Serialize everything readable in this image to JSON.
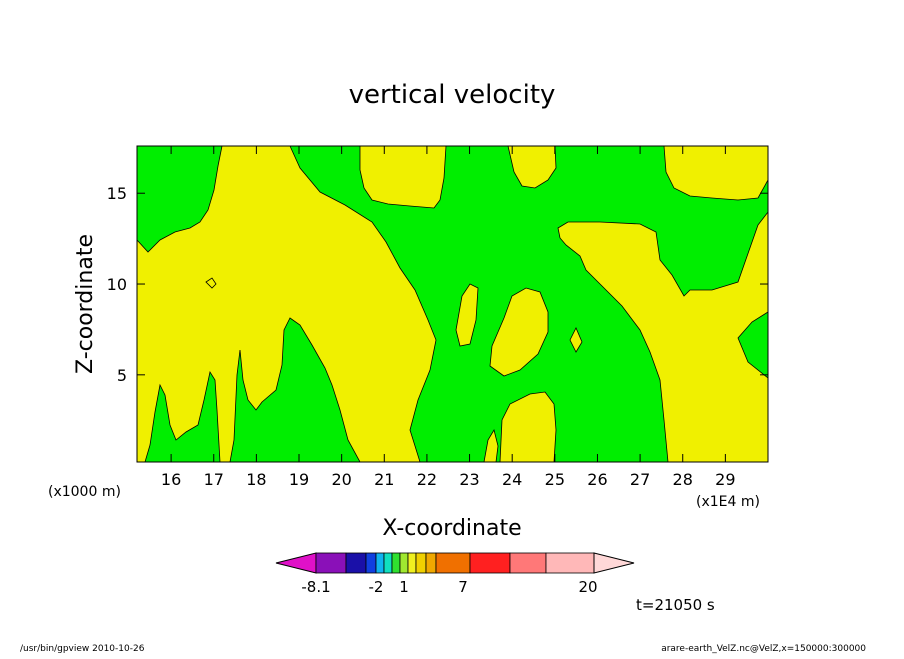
{
  "chart_data": {
    "type": "heatmap",
    "title": "vertical velocity",
    "xlabel": "X-coordinate",
    "ylabel": "Z-coordinate",
    "x_unit": "(x1E4 m)",
    "y_unit": "(x1000 m)",
    "x_ticks": [
      "16",
      "17",
      "18",
      "19",
      "20",
      "21",
      "22",
      "23",
      "24",
      "25",
      "26",
      "27",
      "28",
      "29"
    ],
    "y_ticks": [
      "5",
      "10",
      "15"
    ],
    "xlim": [
      15.2,
      30
    ],
    "ylim": [
      0.2,
      17.6
    ],
    "grid": false,
    "time_label": "t=21050 s",
    "colorbar": {
      "labels": [
        "-8.1",
        "-2",
        "1",
        "7",
        "20"
      ],
      "colors": [
        "#e011c8",
        "#8a10b8",
        "#1a10a8",
        "#1040e0",
        "#10b4f0",
        "#10e0c0",
        "#30e030",
        "#a0e830",
        "#f0f020",
        "#f0d000",
        "#f0a800",
        "#f07000",
        "#ff2020",
        "#ff7878",
        "#ffb8b8",
        "#ffd8d8"
      ],
      "regions_visible_colors": [
        "#00ee00",
        "#f0f000"
      ]
    }
  },
  "footer": {
    "left": "/usr/bin/gpview   2010-10-26",
    "right": "arare-earth_VelZ.nc@VelZ,x=150000:300000"
  }
}
